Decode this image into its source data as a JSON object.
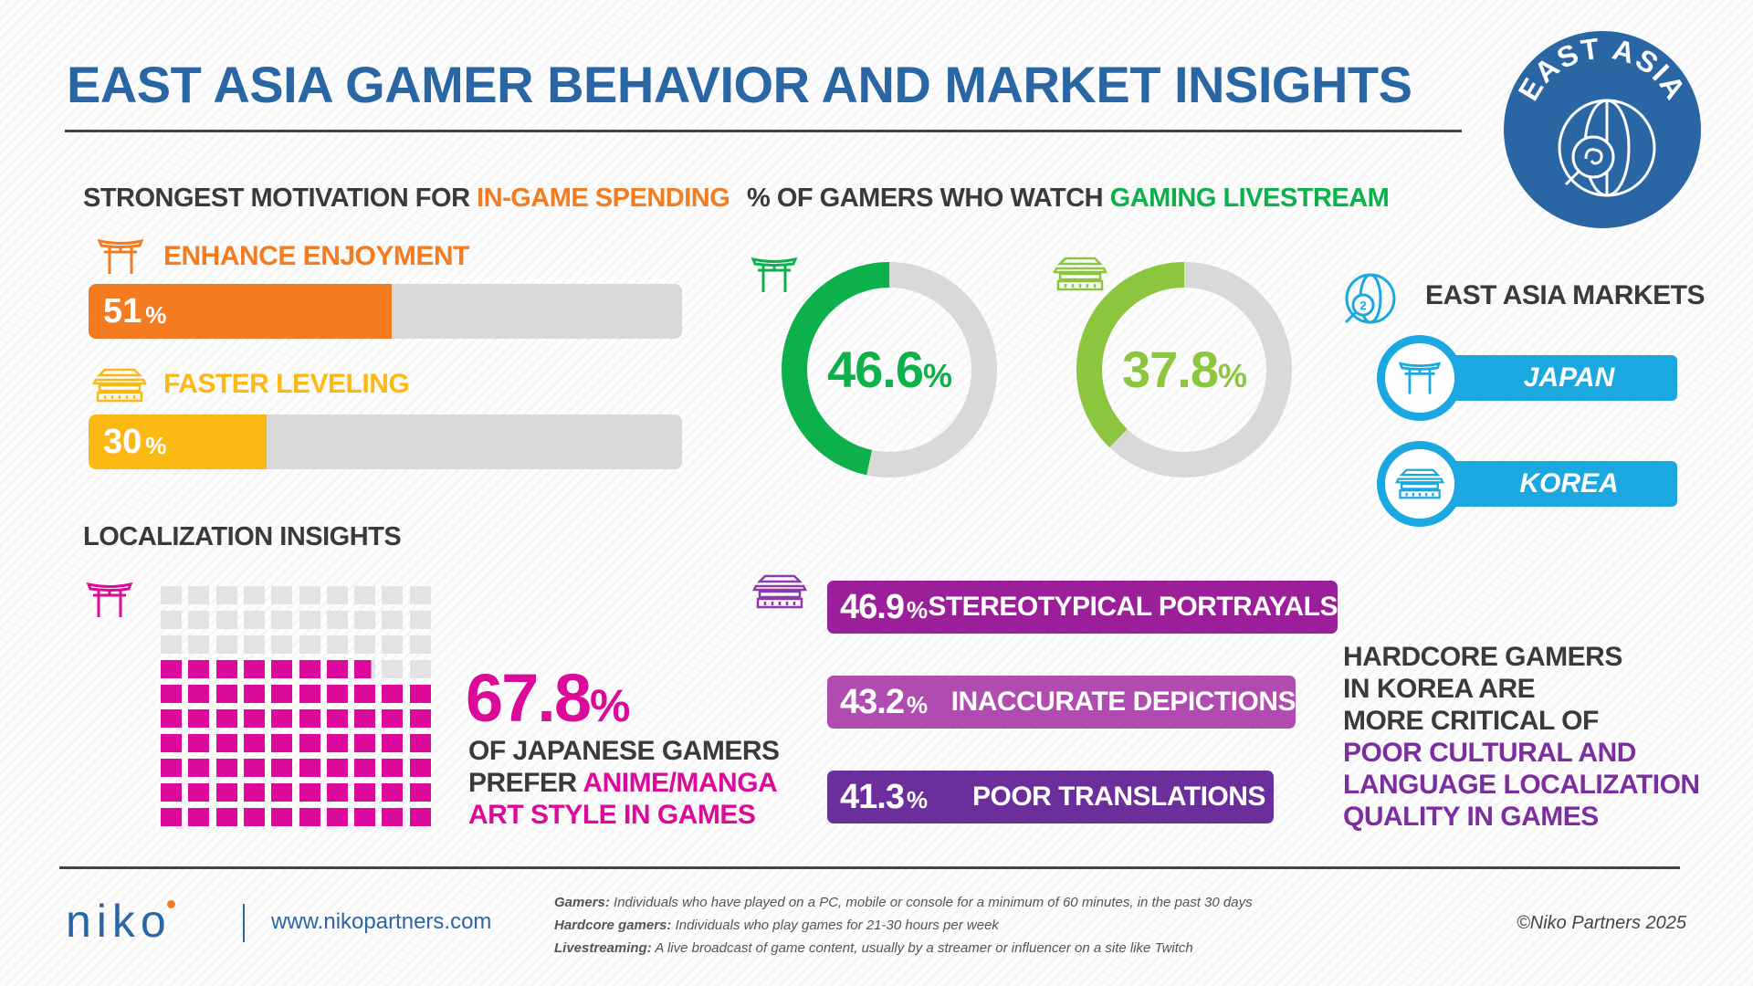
{
  "title": "EAST ASIA GAMER BEHAVIOR AND MARKET INSIGHTS",
  "badge": {
    "text": "EAST ASIA",
    "icon": "globe-magnifier-icon"
  },
  "colors": {
    "blue": "#2a65a4",
    "orange": "#f47b20",
    "yellow": "#fdb913",
    "green": "#0db14b",
    "light_green": "#8cc63f",
    "pink": "#dc0a9b",
    "cyan": "#1ba8e0",
    "purple1": "#9b1f99",
    "purple2": "#b04cb0",
    "purple3": "#6b2e9b",
    "grey": "#d9d9d9"
  },
  "spending": {
    "heading_prefix": "STRONGEST MOTIVATION FOR ",
    "heading_highlight": "IN-GAME SPENDING",
    "items": [
      {
        "label": "ENHANCE ENJOYMENT",
        "value": "51",
        "unit": "%",
        "fraction": 0.51,
        "market": "Japan",
        "icon": "torii-gate-icon"
      },
      {
        "label": "FASTER LEVELING",
        "value": "30",
        "unit": "%",
        "fraction": 0.3,
        "market": "Korea",
        "icon": "korean-palace-icon"
      }
    ]
  },
  "livestream": {
    "heading_prefix": "% OF GAMERS WHO WATCH ",
    "heading_highlight": "GAMING LIVESTREAM",
    "items": [
      {
        "value": "46.6",
        "unit": "%",
        "fraction": 0.466,
        "market": "Japan",
        "icon": "torii-gate-icon"
      },
      {
        "value": "37.8",
        "unit": "%",
        "fraction": 0.378,
        "market": "Korea",
        "icon": "korean-palace-icon"
      }
    ]
  },
  "markets": {
    "heading": "EAST ASIA MARKETS",
    "items": [
      {
        "label": "JAPAN",
        "icon": "torii-gate-icon"
      },
      {
        "label": "KOREA",
        "icon": "korean-palace-icon"
      }
    ]
  },
  "localization": {
    "heading": "LOCALIZATION INSIGHTS",
    "japan": {
      "value": "67.8",
      "unit": "%",
      "fraction": 0.678,
      "line1": "OF JAPANESE GAMERS",
      "line2_prefix": "PREFER ",
      "line2_highlight": "ANIME/MANGA",
      "line3": "ART STYLE IN GAMES"
    },
    "korea": {
      "items": [
        {
          "value": "46.9",
          "unit": "%",
          "label": "STEREOTYPICAL PORTRAYALS"
        },
        {
          "value": "43.2",
          "unit": "%",
          "label": "INACCURATE DEPICTIONS"
        },
        {
          "value": "41.3",
          "unit": "%",
          "label": "POOR TRANSLATIONS"
        }
      ],
      "note_lines": [
        "HARDCORE GAMERS",
        "IN KOREA ARE",
        "MORE CRITICAL OF"
      ],
      "note_highlight_lines": [
        "POOR CULTURAL AND",
        "LANGUAGE LOCALIZATION",
        "QUALITY IN GAMES"
      ]
    }
  },
  "footer": {
    "logo": "niko",
    "url": "www.nikopartners.com",
    "definitions": [
      {
        "term": "Gamers:",
        "text": "Individuals who have played on a PC, mobile or console for a minimum of 60 minutes, in the past 30 days"
      },
      {
        "term": "Hardcore gamers:",
        "text": "Individuals who play games for 21-30 hours per week"
      },
      {
        "term": "Livestreaming:",
        "text": "A live broadcast of game content, usually by a streamer or influencer on a site like Twitch"
      }
    ],
    "copyright": "©Niko Partners 2025"
  }
}
